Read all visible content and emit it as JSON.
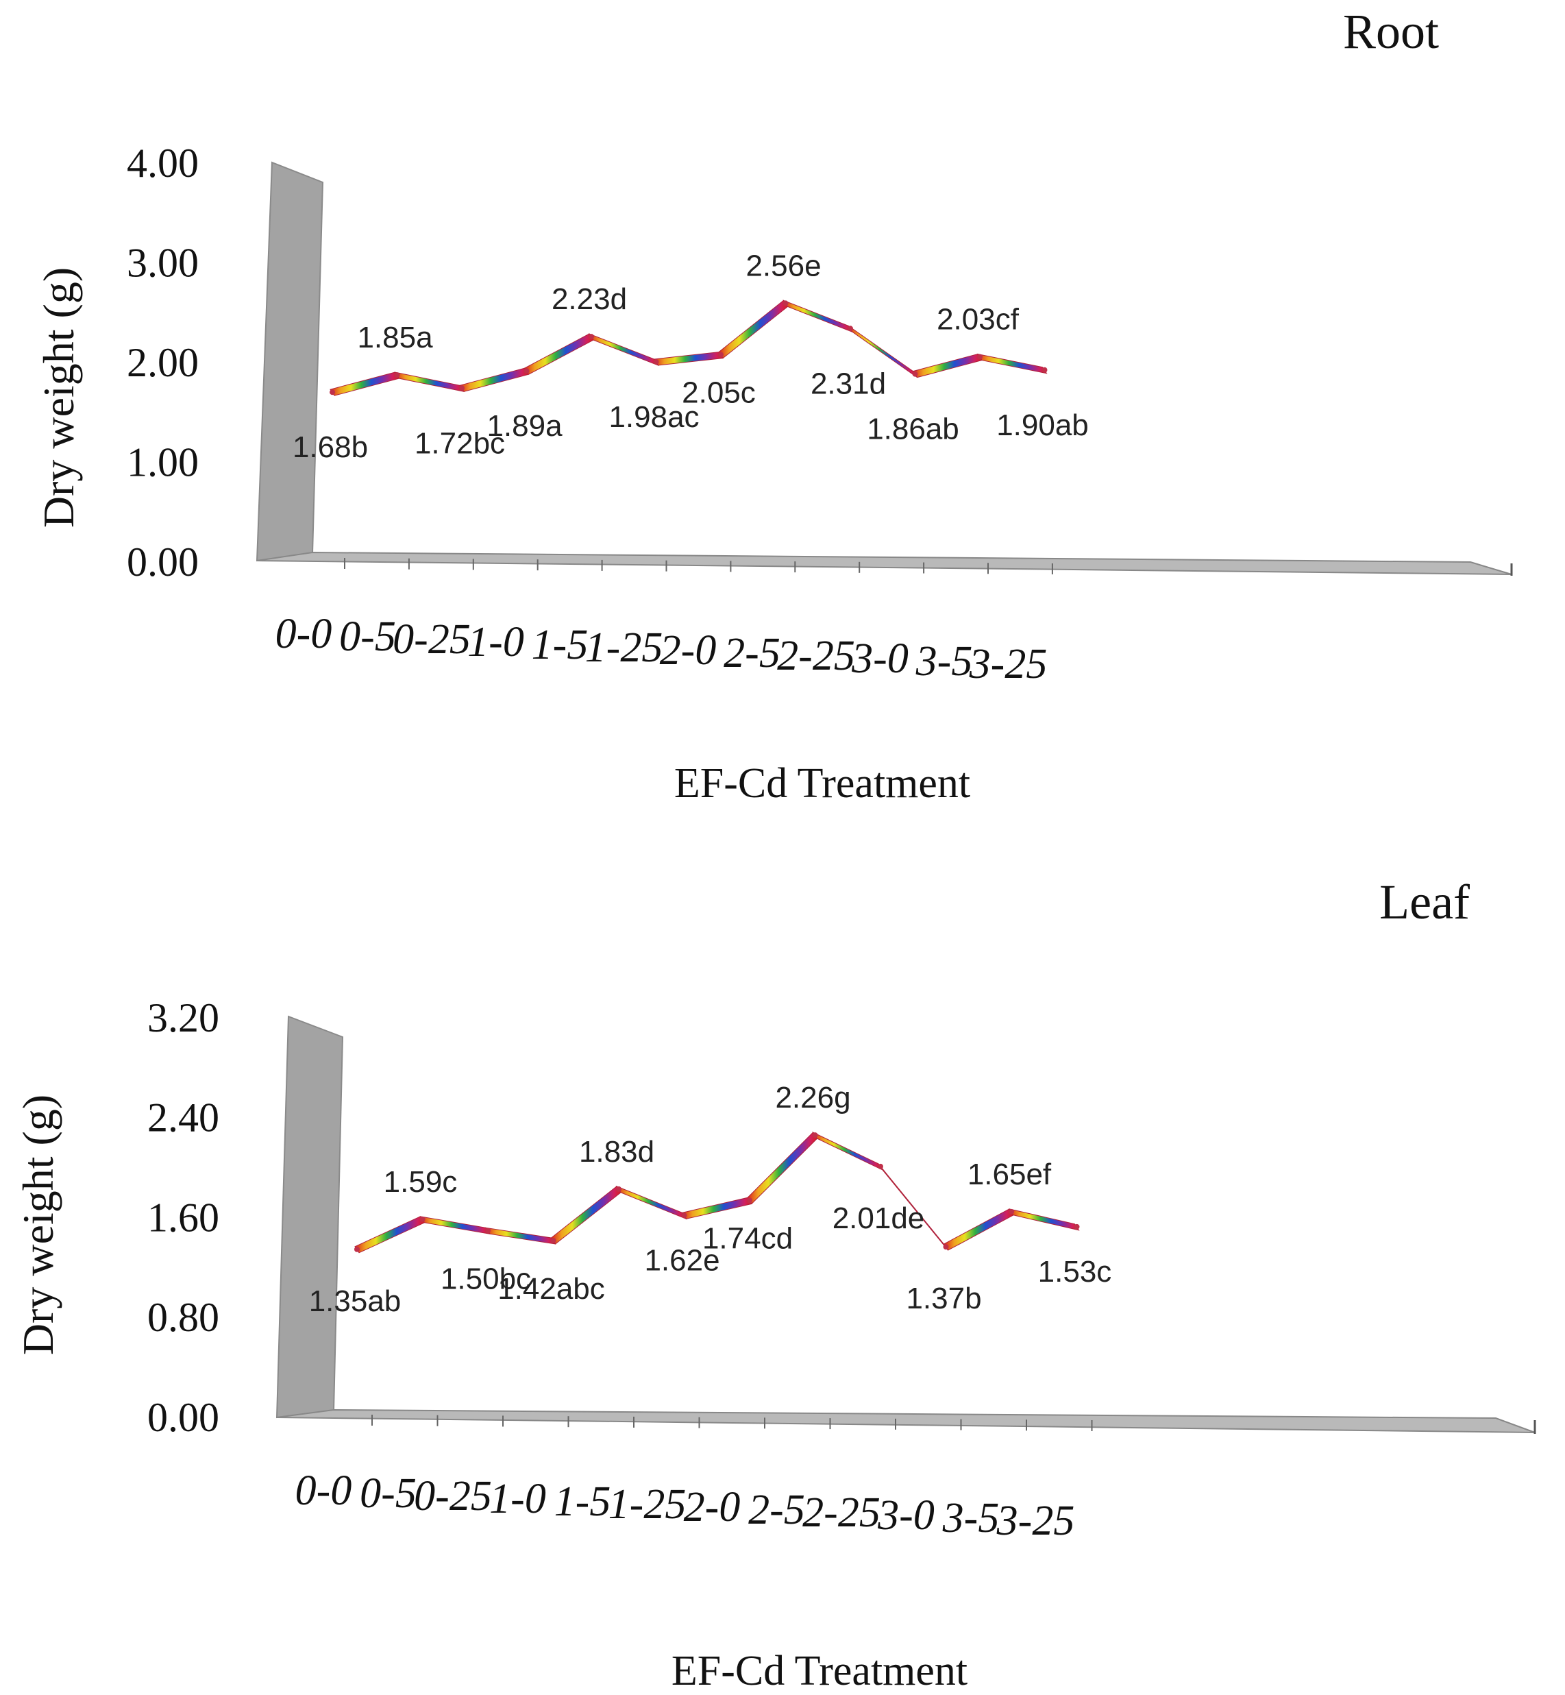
{
  "chart_data": [
    {
      "type": "line",
      "title": "Root",
      "xlabel": "EF-Cd Treatment",
      "ylabel": "Dry weight (g)",
      "ylim": [
        0,
        4
      ],
      "yticks": [
        "0.00",
        "1.00",
        "2.00",
        "3.00",
        "4.00"
      ],
      "categories": [
        "0-0",
        "0-5",
        "0-25",
        "1-0",
        "1-5",
        "1-25",
        "2-0",
        "2-5",
        "2-25",
        "3-0",
        "3-5",
        "3-25"
      ],
      "values": [
        1.68,
        1.85,
        1.72,
        1.89,
        2.23,
        1.98,
        2.05,
        2.56,
        2.31,
        1.86,
        2.03,
        1.9
      ],
      "labels": [
        "1.68b",
        "1.85a",
        "1.72bc",
        "1.89a",
        "2.23d",
        "1.98ac",
        "2.05c",
        "2.56e",
        "2.31d",
        "1.86ab",
        "2.03cf",
        "1.90ab"
      ],
      "grid": false,
      "style": "3d ribbon"
    },
    {
      "type": "line",
      "title": "Leaf",
      "xlabel": "EF-Cd Treatment",
      "ylabel": "Dry weight (g)",
      "ylim": [
        0,
        3.2
      ],
      "yticks": [
        "0.00",
        "0.80",
        "1.60",
        "2.40",
        "3.20"
      ],
      "categories": [
        "0-0",
        "0-5",
        "0-25",
        "1-0",
        "1-5",
        "1-25",
        "2-0",
        "2-5",
        "2-25",
        "3-0",
        "3-5",
        "3-25"
      ],
      "values": [
        1.35,
        1.59,
        1.5,
        1.42,
        1.83,
        1.62,
        1.74,
        2.26,
        2.01,
        1.37,
        1.65,
        1.53
      ],
      "labels": [
        "1.35ab",
        "1.59c",
        "1.50bc",
        "1.42abc",
        "1.83d",
        "1.62e",
        "1.74cd",
        "2.26g",
        "2.01de",
        "1.37b",
        "1.65ef",
        "1.53c"
      ],
      "grid": false,
      "style": "3d ribbon"
    }
  ]
}
